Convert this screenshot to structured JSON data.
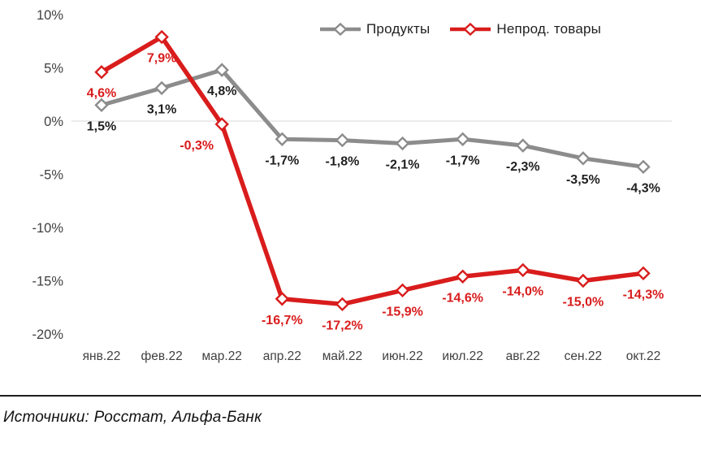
{
  "legend": {
    "items": [
      {
        "label": "Продукты"
      },
      {
        "label": "Непрод. товары"
      }
    ]
  },
  "chart_data": {
    "type": "line",
    "categories": [
      "янв.22",
      "фев.22",
      "мар.22",
      "апр.22",
      "май.22",
      "июн.22",
      "июл.22",
      "авг.22",
      "сен.22",
      "окт.22"
    ],
    "series": [
      {
        "name": "Продукты",
        "color": "#8C8C8C",
        "label_color": "#1F1F1F",
        "values": [
          1.5,
          3.1,
          4.8,
          -1.7,
          -1.8,
          -2.1,
          -1.7,
          -2.3,
          -3.5,
          -4.3
        ],
        "labels": [
          "1,5%",
          "3,1%",
          "4,8%",
          "-1,7%",
          "-1,8%",
          "-2,1%",
          "-1,7%",
          "-2,3%",
          "-3,5%",
          "-4,3%"
        ]
      },
      {
        "name": "Непрод. товары",
        "color": "#D91C1C",
        "label_color": "#D91C1C",
        "values": [
          4.6,
          7.9,
          -0.3,
          -16.7,
          -17.2,
          -15.9,
          -14.6,
          -14.0,
          -15.0,
          -14.3
        ],
        "labels": [
          "4,6%",
          "7,9%",
          "-0,3%",
          "-16,7%",
          "-17,2%",
          "-15,9%",
          "-14,6%",
          "-14,0%",
          "-15,0%",
          "-14,3%"
        ]
      }
    ],
    "y_axis": {
      "tick_labels": [
        "10%",
        "5%",
        "0%",
        "-5%",
        "-10%",
        "-15%",
        "-20%"
      ],
      "tick_values": [
        10,
        5,
        0,
        -5,
        -10,
        -15,
        -20
      ],
      "ylim": [
        -20,
        10
      ]
    },
    "grid": {
      "zero_line_only": true,
      "zero_line_color": "#D9D9D9"
    },
    "axis_text_color": "#404040",
    "marker": "diamond",
    "legend_position": "top-right",
    "title": ""
  },
  "footer": {
    "source_text": "Источники: Росстат, Альфа-Банк"
  }
}
